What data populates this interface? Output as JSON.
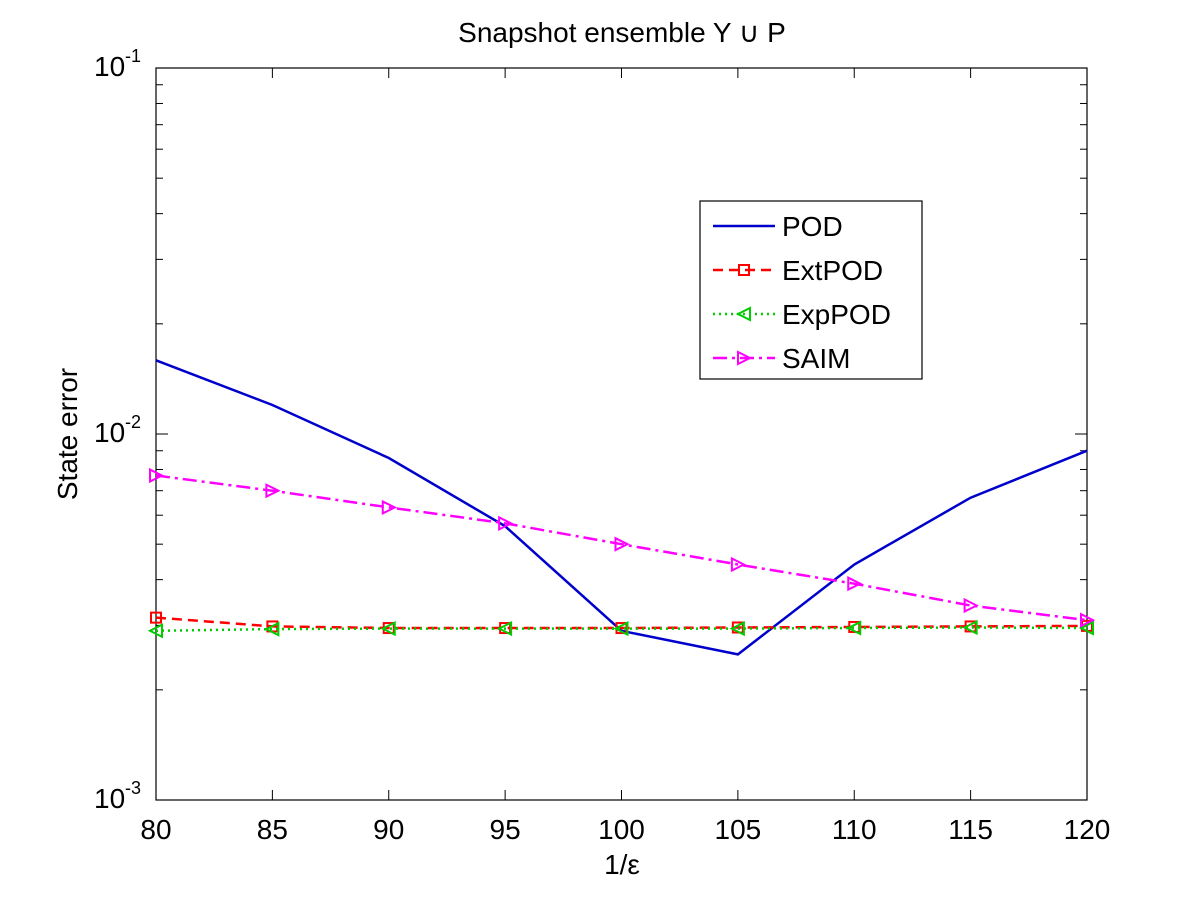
{
  "chart_data": {
    "type": "line",
    "title": "Snapshot ensemble Y ∪ P",
    "xlabel": "1/ε",
    "ylabel": "State error",
    "yscale": "log",
    "xlim": [
      80,
      120
    ],
    "ylim": [
      0.001,
      0.1
    ],
    "x": [
      80,
      85,
      90,
      95,
      100,
      105,
      110,
      115,
      120
    ],
    "x_tick_labels": [
      "80",
      "85",
      "90",
      "95",
      "100",
      "105",
      "110",
      "115",
      "120"
    ],
    "y_ticks": [
      {
        "value": 0.1,
        "base": "10",
        "exp": "-1"
      },
      {
        "value": 0.01,
        "base": "10",
        "exp": "-2"
      },
      {
        "value": 0.001,
        "base": "10",
        "exp": "-3"
      }
    ],
    "legend_position": "top-right",
    "series": [
      {
        "name": "POD",
        "color": "#0000cc",
        "dash": "",
        "marker": "none",
        "values": [
          0.0159,
          0.012,
          0.0086,
          0.0056,
          0.0029,
          0.0025,
          0.0044,
          0.0067,
          0.009
        ]
      },
      {
        "name": "ExtPOD",
        "color": "#ff0000",
        "dash": "10,6",
        "marker": "square",
        "values": [
          0.00315,
          0.00298,
          0.00295,
          0.00295,
          0.00295,
          0.00296,
          0.00297,
          0.00298,
          0.00299
        ]
      },
      {
        "name": "ExpPOD",
        "color": "#00cc00",
        "dash": "2,4",
        "marker": "triangle-left",
        "values": [
          0.0029,
          0.00293,
          0.00294,
          0.00294,
          0.00294,
          0.00294,
          0.00295,
          0.00296,
          0.00295
        ]
      },
      {
        "name": "SAIM",
        "color": "#ff00ff",
        "dash": "14,5,3,5",
        "marker": "triangle-right",
        "values": [
          0.0077,
          0.007,
          0.0063,
          0.0057,
          0.005,
          0.0044,
          0.0039,
          0.0034,
          0.0031
        ]
      }
    ]
  }
}
